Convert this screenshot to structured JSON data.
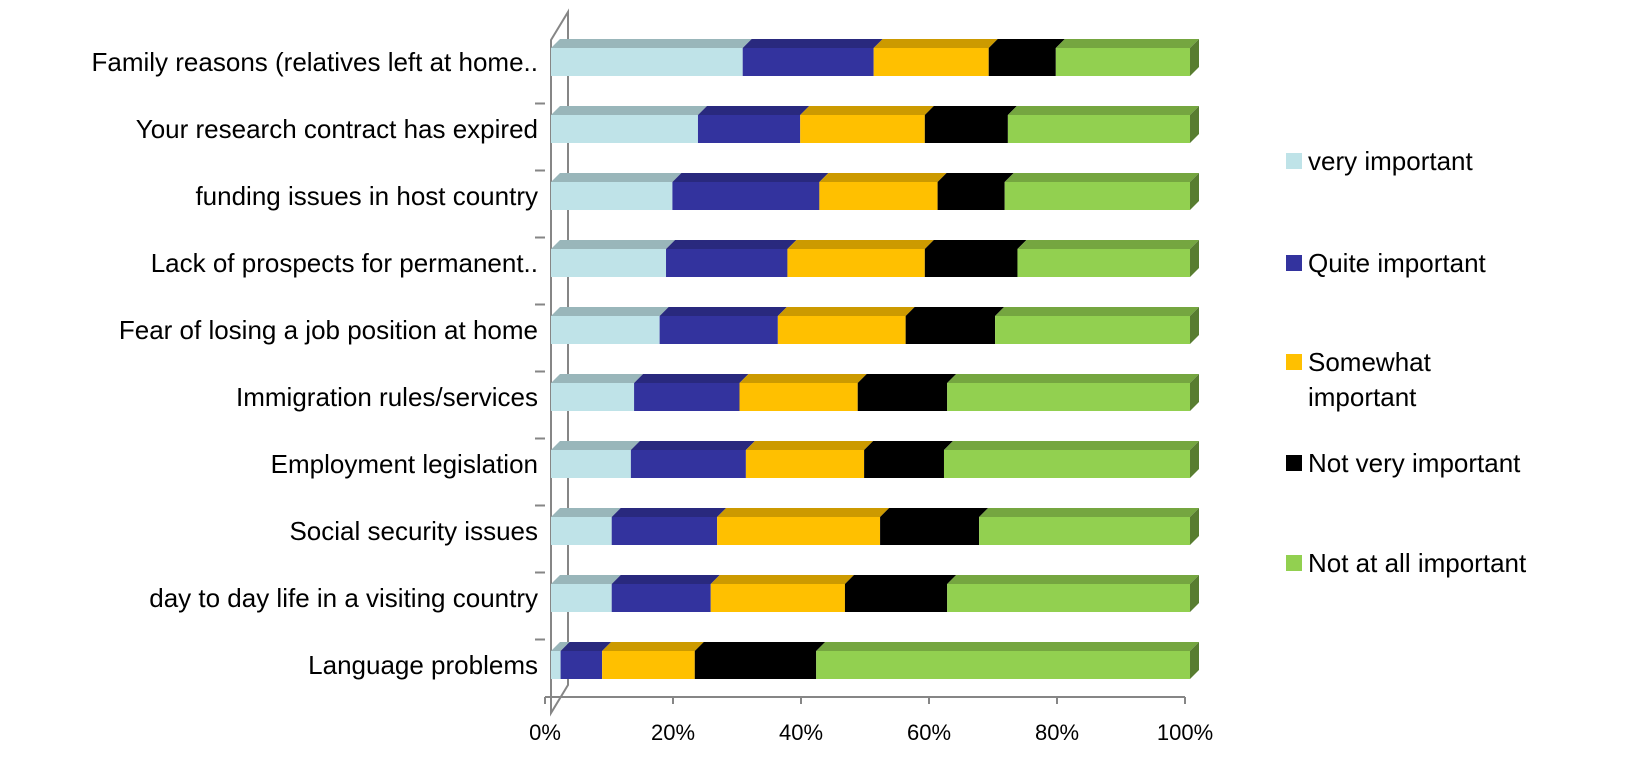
{
  "chart_data": {
    "type": "bar",
    "orientation": "horizontal",
    "stacked": "percent",
    "three_d": true,
    "title": "",
    "xlabel": "",
    "ylabel": "",
    "xlim": [
      0,
      100
    ],
    "x_ticks": [
      "0%",
      "20%",
      "40%",
      "60%",
      "80%",
      "100%"
    ],
    "grid": false,
    "legend_position": "right",
    "categories": [
      "Family reasons (relatives left at home..",
      "Your research contract has expired",
      "funding issues in host country",
      "Lack of prospects for permanent..",
      "Fear of losing a job position at home",
      "Immigration rules/services",
      "Employment legislation",
      "Social security issues",
      "day to day life in a visiting country",
      "Language problems"
    ],
    "series": [
      {
        "name": "very important",
        "color": "#bfe3e8",
        "values": [
          30,
          23,
          19,
          18,
          17,
          13,
          12.5,
          9.5,
          9.5,
          1.5
        ]
      },
      {
        "name": "Quite important",
        "color": "#33339e",
        "values": [
          20.5,
          16,
          23,
          19,
          18.5,
          16.5,
          18,
          16.5,
          15.5,
          6.5
        ]
      },
      {
        "name": "Somewhat important",
        "color": "#ffc000",
        "values": [
          18,
          19.5,
          18.5,
          21.5,
          20,
          18.5,
          18.5,
          25.5,
          21,
          14.5
        ]
      },
      {
        "name": "Not very important",
        "color": "#000000",
        "values": [
          10.5,
          13,
          10.5,
          14.5,
          14,
          14,
          12.5,
          15.5,
          16,
          19
        ]
      },
      {
        "name": "Not at all important",
        "color": "#92d050",
        "values": [
          21,
          28.5,
          29,
          27,
          30.5,
          38,
          38.5,
          33,
          38,
          58.5
        ]
      }
    ]
  }
}
